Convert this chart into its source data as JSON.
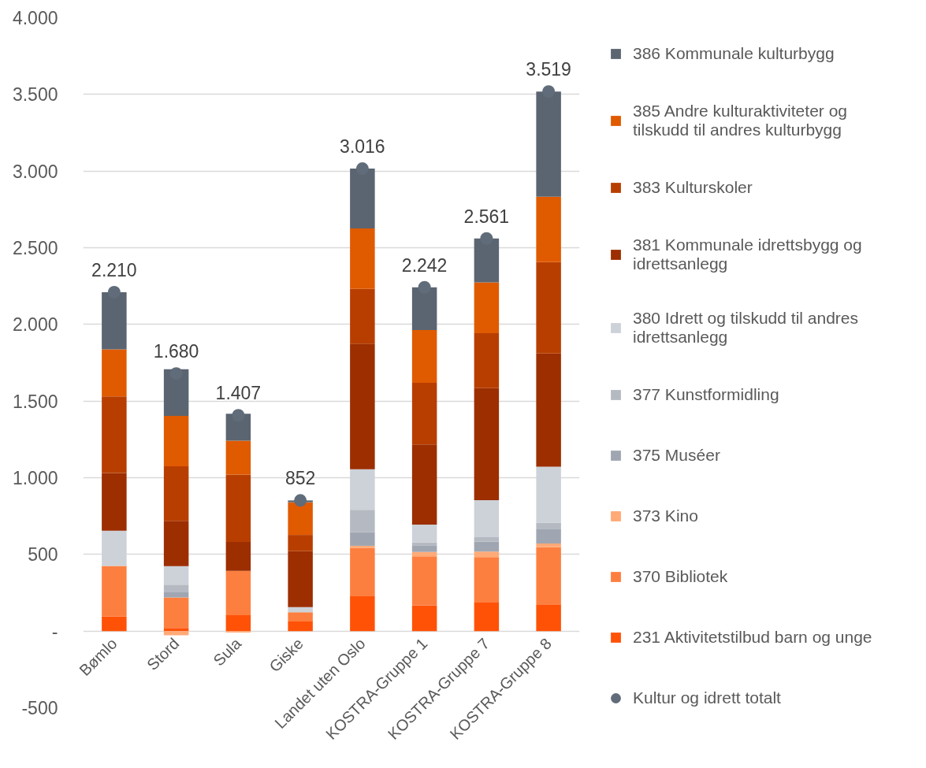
{
  "chart_data": {
    "type": "bar",
    "stacked": true,
    "categories": [
      "Bømlo",
      "Stord",
      "Sula",
      "Giske",
      "Landet uten Oslo",
      "KOSTRA-Gruppe 1",
      "KOSTRA-Gruppe 7",
      "KOSTRA-Gruppe 8"
    ],
    "series": [
      {
        "name": "231 Aktivitetstilbud barn og unge",
        "color": "#ff5207",
        "values": [
          96,
          20,
          103,
          62,
          227,
          168,
          189,
          174
        ]
      },
      {
        "name": "370 Bibliotek",
        "color": "#fd7f3f",
        "values": [
          329,
          199,
          290,
          61,
          314,
          319,
          293,
          373
        ]
      },
      {
        "name": "373 Kino",
        "color": "#ffaa77",
        "values": [
          null,
          -28,
          -10,
          null,
          15,
          29,
          36,
          24
        ]
      },
      {
        "name": "375 Muséer",
        "color": "#a0a6b1",
        "values": [
          null,
          33,
          null,
          null,
          90,
          44,
          65,
          96
        ]
      },
      {
        "name": "377 Kunstformidling",
        "color": "#b5bac2",
        "values": [
          null,
          51,
          null,
          null,
          145,
          19,
          29,
          40
        ]
      },
      {
        "name": "380 Idrett og tilskudd til andres idrettsanlegg",
        "color": "#cdd1d8",
        "values": [
          230,
          120,
          null,
          33,
          264,
          115,
          242,
          365
        ]
      },
      {
        "name": "381 Kommunale idrettsbygg og idrettsanlegg",
        "color": "#9c2e00",
        "values": [
          376,
          296,
          188,
          365,
          820,
          523,
          730,
          738
        ]
      },
      {
        "name": "383 Kulturskoler",
        "color": "#b83e00",
        "values": [
          500,
          355,
          439,
          106,
          357,
          402,
          358,
          596
        ]
      },
      {
        "name": "385 Andre kulturaktiviteter og tilskudd til andres kulturbygg",
        "color": "#e05a00",
        "values": [
          306,
          329,
          221,
          213,
          394,
          344,
          332,
          426
        ]
      },
      {
        "name": "386 Kommunale kulturbygg",
        "color": "#5b6571",
        "values": [
          373,
          305,
          176,
          12,
          390,
          279,
          287,
          687
        ]
      },
      {
        "name": "Kultur og idrett totalt",
        "type": "scatter",
        "marker": "circle",
        "color": "#606c7a",
        "values": [
          2210,
          1680,
          1407,
          852,
          3016,
          2242,
          2561,
          3519
        ],
        "value_labels": [
          "2.210",
          "1.680",
          "1.407",
          "852",
          "3.016",
          "2.242",
          "2.561",
          "3.519"
        ]
      }
    ],
    "ylim": [
      -500,
      4000
    ],
    "yticks": [
      -500,
      {
        "value": 0,
        "label": "-"
      },
      500,
      {
        "value": 1000,
        "label": "1.000"
      },
      {
        "value": 1500,
        "label": "1.500"
      },
      {
        "value": 2000,
        "label": "2.000"
      },
      {
        "value": 2500,
        "label": "2.500"
      },
      {
        "value": 3000,
        "label": "3.000"
      },
      {
        "value": 3500,
        "label": "3.500"
      },
      {
        "value": 4000,
        "label": "4.000"
      }
    ],
    "grid": "y",
    "legend": "right"
  }
}
